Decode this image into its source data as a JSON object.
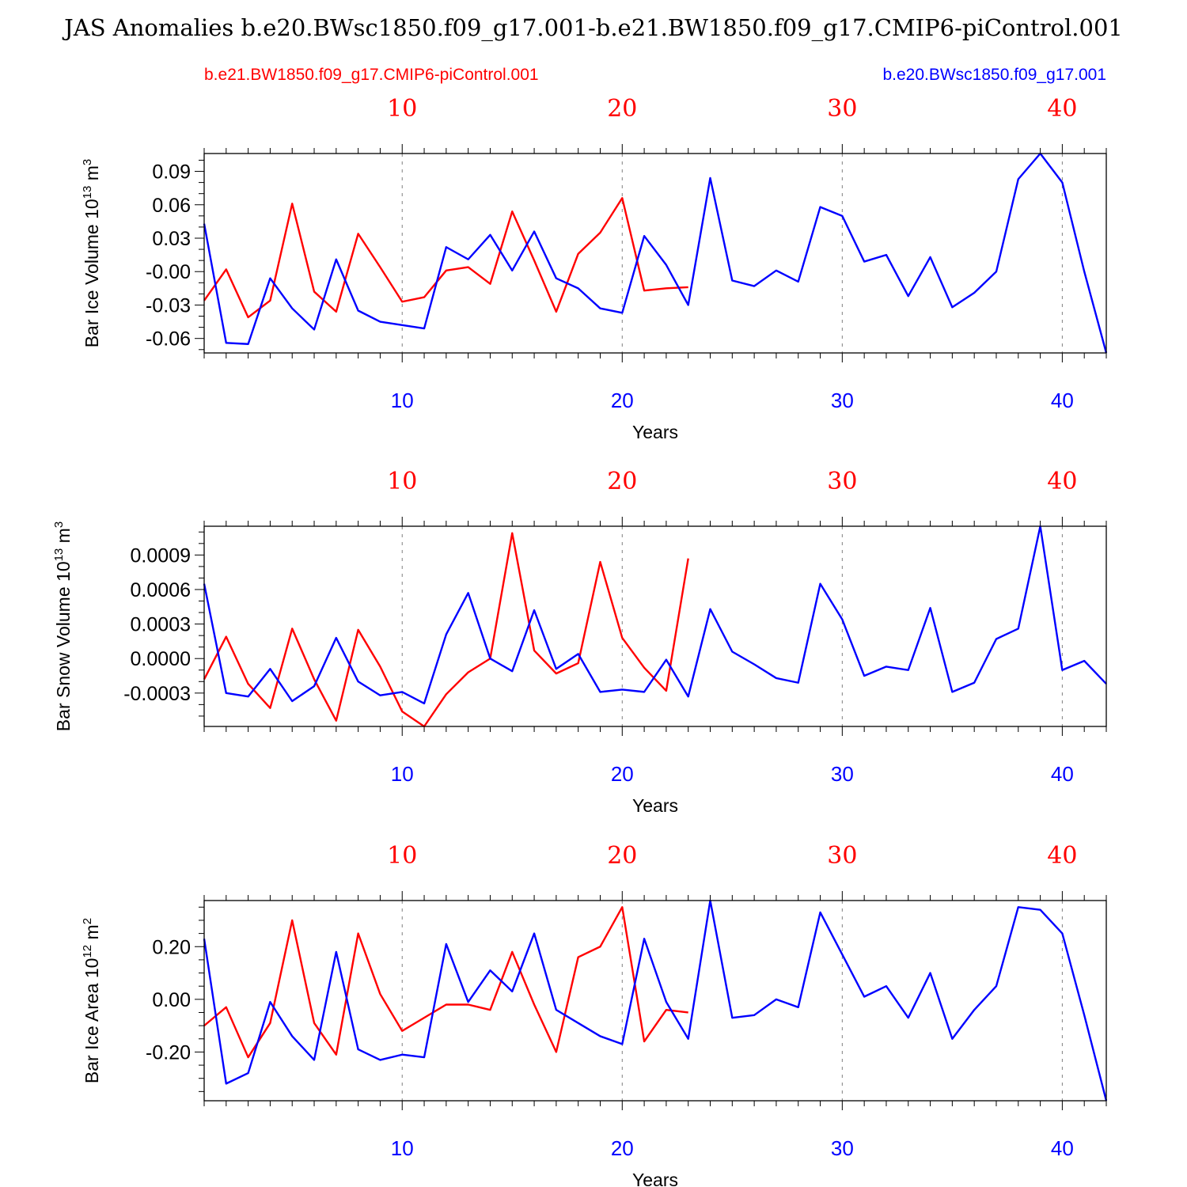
{
  "title": "JAS Anomalies b.e20.BWsc1850.f09_g17.001-b.e21.BW1850.f09_g17.CMIP6-piControl.001",
  "legend": {
    "left": "b.e21.BW1850.f09_g17.CMIP6-piControl.001",
    "right": "b.e20.BWsc1850.f09_g17.001"
  },
  "colors": {
    "control": "#ff0000",
    "experiment": "#0000ff",
    "frame": "#000000",
    "grid": "#808080"
  },
  "chart_data": [
    {
      "type": "line",
      "ylabel": "Bar Ice Volume 10",
      "ylabel_exp": "13",
      "ylabel_unit": " m",
      "ylabel_unit_exp": "3",
      "xlabel": "Years",
      "xlim": [
        1,
        42
      ],
      "ylim": [
        -0.073,
        0.106
      ],
      "yticks": [
        0.09,
        0.06,
        0.03,
        0.0,
        -0.03,
        -0.06
      ],
      "ytick_labels": [
        "0.09",
        "0.06",
        "0.03",
        "-0.00",
        "-0.03",
        "-0.06"
      ],
      "yminor": [
        -0.07,
        -0.05,
        -0.04,
        -0.02,
        -0.01,
        0.01,
        0.02,
        0.04,
        0.05,
        0.07,
        0.08,
        0.1
      ],
      "xticks_top": [
        10,
        20,
        30,
        40
      ],
      "xtick_labels_top": [
        "10",
        "20",
        "30",
        "40"
      ],
      "xticks_bottom": [
        10,
        20,
        30,
        40
      ],
      "xtick_labels_bottom": [
        "10",
        "20",
        "30",
        "40"
      ],
      "series": [
        {
          "name": "b.e20.BWsc1850.f09_g17.001",
          "values": [
            0.043,
            -0.064,
            -0.065,
            -0.006,
            -0.033,
            -0.052,
            0.011,
            -0.035,
            -0.045,
            -0.048,
            -0.051,
            0.022,
            0.011,
            0.033,
            0.001,
            0.036,
            -0.006,
            -0.015,
            -0.033,
            -0.037,
            0.032,
            0.006,
            -0.03,
            0.084,
            -0.008,
            -0.013,
            0.001,
            -0.009,
            0.058,
            0.05,
            0.009,
            0.015,
            -0.022,
            0.013,
            -0.032,
            -0.019,
            0.0,
            0.083,
            0.106,
            0.08,
            0.0,
            -0.073
          ]
        },
        {
          "name": "b.e21.BW1850.f09_g17.CMIP6-piControl.001",
          "values": [
            -0.026,
            0.002,
            -0.041,
            -0.026,
            0.061,
            -0.018,
            -0.036,
            0.034,
            0.004,
            -0.027,
            -0.023,
            0.001,
            0.004,
            -0.011,
            0.054,
            0.01,
            -0.036,
            0.016,
            0.035,
            0.066,
            -0.017,
            -0.015,
            -0.014
          ]
        }
      ]
    },
    {
      "type": "line",
      "ylabel": "Bar Snow Volume 10",
      "ylabel_exp": "13",
      "ylabel_unit": " m",
      "ylabel_unit_exp": "3",
      "xlabel": "Years",
      "xlim": [
        1,
        42
      ],
      "ylim": [
        -0.00059,
        0.00115
      ],
      "yticks": [
        0.0009,
        0.0006,
        0.0003,
        0.0,
        -0.0003
      ],
      "ytick_labels": [
        "0.0009",
        "0.0006",
        "0.0003",
        "0.0000",
        "-0.0003"
      ],
      "yminor": [
        -0.0005,
        -0.0004,
        -0.0002,
        -0.0001,
        0.0001,
        0.0002,
        0.0004,
        0.0005,
        0.0007,
        0.0008,
        0.001,
        0.0011
      ],
      "xticks_top": [
        10,
        20,
        30,
        40
      ],
      "xtick_labels_top": [
        "10",
        "20",
        "30",
        "40"
      ],
      "xticks_bottom": [
        10,
        20,
        30,
        40
      ],
      "xtick_labels_bottom": [
        "10",
        "20",
        "30",
        "40"
      ],
      "series": [
        {
          "name": "b.e20.BWsc1850.f09_g17.001",
          "values": [
            0.00065,
            -0.0003,
            -0.00033,
            -9e-05,
            -0.00037,
            -0.00024,
            0.00018,
            -0.0002,
            -0.00032,
            -0.00029,
            -0.00039,
            0.00021,
            0.00057,
            0.0,
            -0.00011,
            0.00042,
            -9e-05,
            4e-05,
            -0.00029,
            -0.00027,
            -0.00029,
            -1e-05,
            -0.00033,
            0.00043,
            6e-05,
            -5e-05,
            -0.00017,
            -0.00021,
            0.00065,
            0.00034,
            -0.00015,
            -7e-05,
            -0.0001,
            0.00044,
            -0.00029,
            -0.00021,
            0.00017,
            0.00026,
            0.00115,
            -0.0001,
            -2e-05,
            -0.00022
          ]
        },
        {
          "name": "b.e21.BW1850.f09_g17.CMIP6-piControl.001",
          "values": [
            -0.00018,
            0.00019,
            -0.00022,
            -0.00043,
            0.00026,
            -0.00018,
            -0.00054,
            0.00025,
            -7e-05,
            -0.00046,
            -0.00059,
            -0.00031,
            -0.00012,
            0.0,
            0.00109,
            7e-05,
            -0.00013,
            -4e-05,
            0.00084,
            0.00018,
            -8e-05,
            -0.00028,
            0.00087
          ]
        }
      ]
    },
    {
      "type": "line",
      "ylabel": "Bar Ice Area 10",
      "ylabel_exp": "12",
      "ylabel_unit": " m",
      "ylabel_unit_exp": "2",
      "xlabel": "Years",
      "xlim": [
        1,
        42
      ],
      "ylim": [
        -0.385,
        0.375
      ],
      "yticks": [
        0.2,
        0.0,
        -0.2
      ],
      "ytick_labels": [
        "0.20",
        "0.00",
        "-0.20"
      ],
      "yminor": [
        -0.35,
        -0.3,
        -0.25,
        -0.15,
        -0.1,
        -0.05,
        0.05,
        0.1,
        0.15,
        0.25,
        0.3,
        0.35
      ],
      "xticks_top": [
        10,
        20,
        30,
        40
      ],
      "xtick_labels_top": [
        "10",
        "20",
        "30",
        "40"
      ],
      "xticks_bottom": [
        10,
        20,
        30,
        40
      ],
      "xtick_labels_bottom": [
        "10",
        "20",
        "30",
        "40"
      ],
      "series": [
        {
          "name": "b.e20.BWsc1850.f09_g17.001",
          "values": [
            0.23,
            -0.32,
            -0.28,
            -0.01,
            -0.14,
            -0.23,
            0.18,
            -0.19,
            -0.23,
            -0.21,
            -0.22,
            0.21,
            -0.01,
            0.11,
            0.03,
            0.25,
            -0.04,
            -0.09,
            -0.14,
            -0.17,
            0.23,
            -0.01,
            -0.15,
            0.375,
            -0.07,
            -0.06,
            0.0,
            -0.03,
            0.33,
            0.17,
            0.01,
            0.05,
            -0.07,
            0.1,
            -0.15,
            -0.04,
            0.05,
            0.35,
            0.34,
            0.25,
            -0.06,
            -0.385
          ]
        },
        {
          "name": "b.e21.BW1850.f09_g17.CMIP6-piControl.001",
          "values": [
            -0.1,
            -0.03,
            -0.22,
            -0.09,
            0.3,
            -0.09,
            -0.21,
            0.25,
            0.02,
            -0.12,
            -0.07,
            -0.02,
            -0.02,
            -0.04,
            0.18,
            -0.02,
            -0.2,
            0.16,
            0.2,
            0.35,
            -0.16,
            -0.04,
            -0.05
          ]
        }
      ]
    }
  ]
}
